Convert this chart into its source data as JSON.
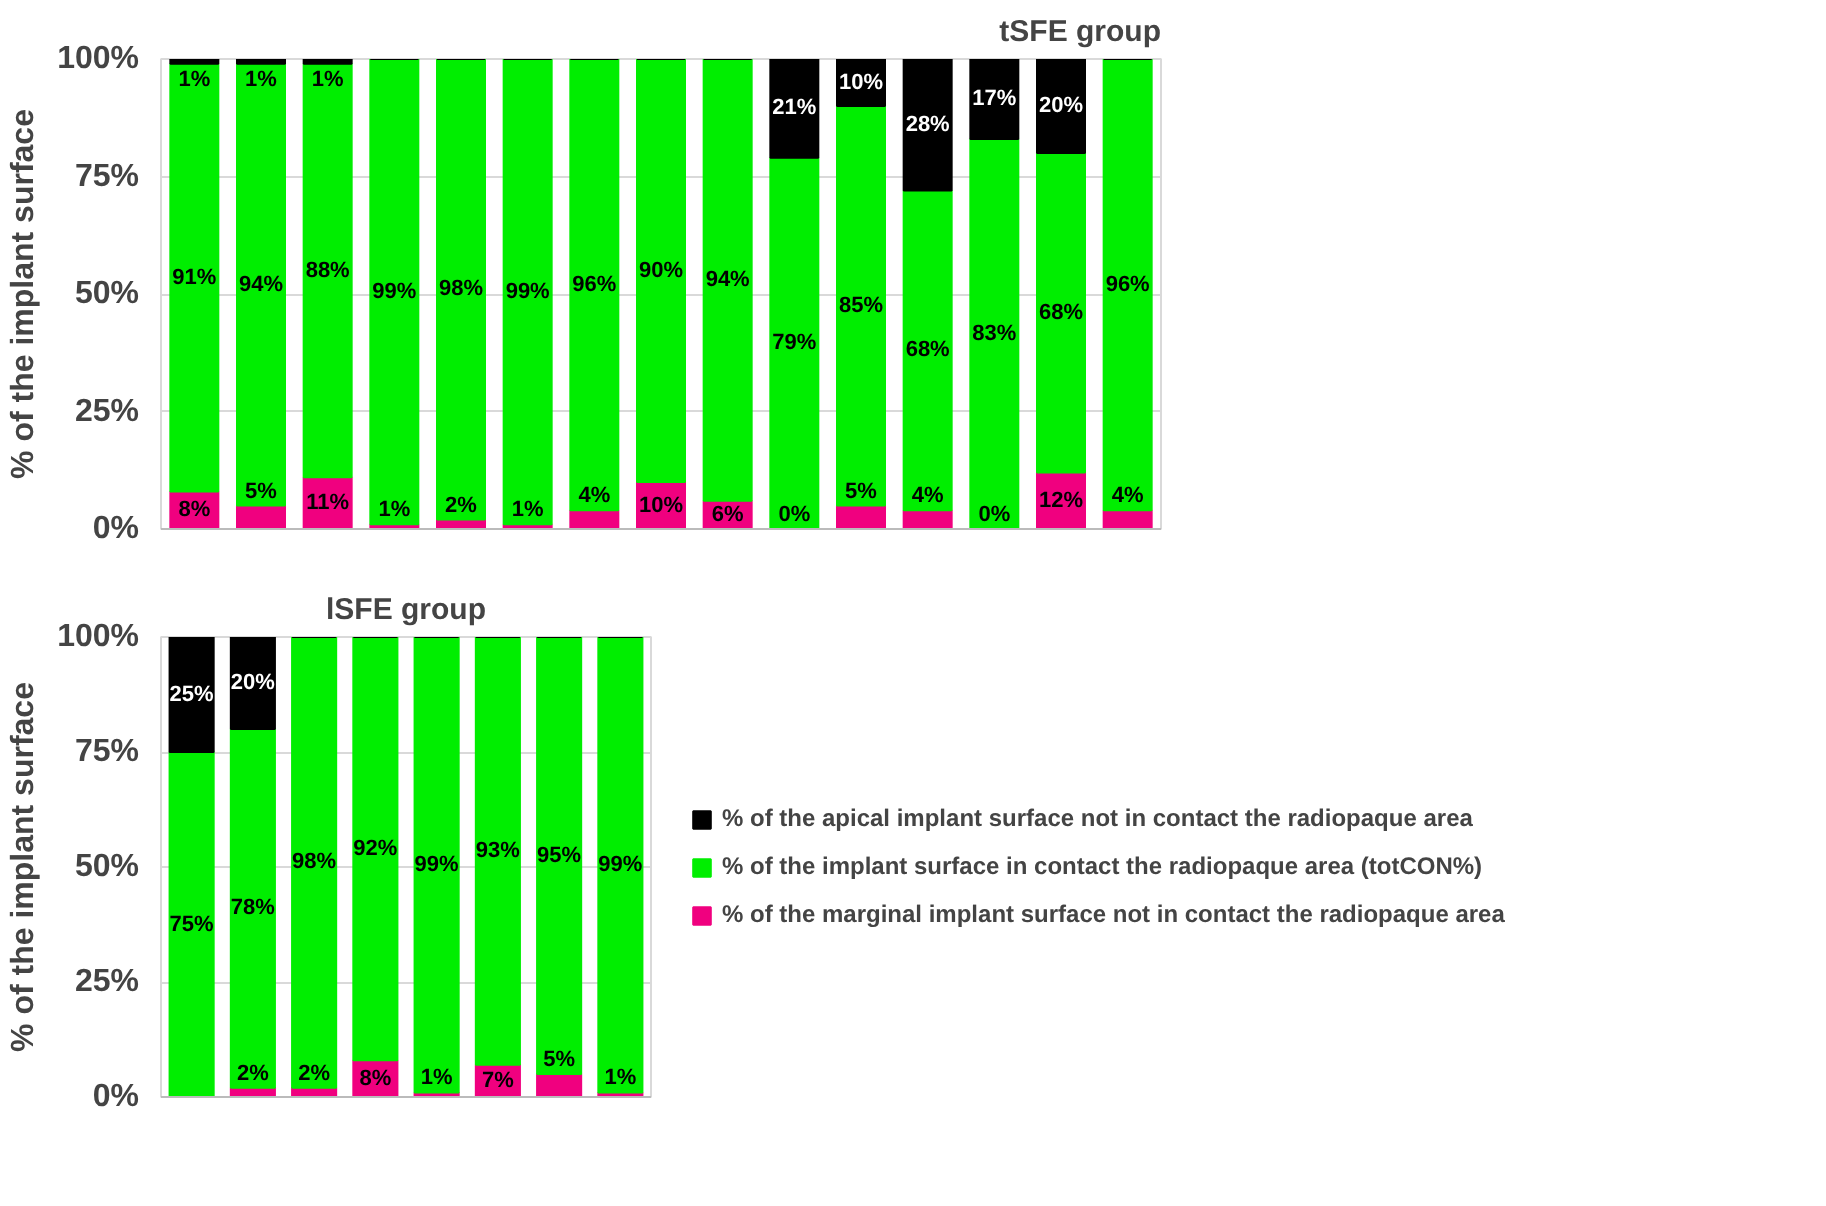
{
  "chart_data": [
    {
      "type": "bar",
      "title": "tSFE group",
      "ylabel": "% of the implant surface",
      "stacked": true,
      "categories": [
        null,
        null,
        null,
        null,
        null,
        null,
        null,
        null,
        null,
        null,
        null,
        null,
        null,
        null,
        null
      ],
      "ylim": [
        0,
        100
      ],
      "yticks": [
        {
          "value": 0,
          "label": "0%"
        },
        {
          "value": 25,
          "label": "25%"
        },
        {
          "value": 50,
          "label": "50%"
        },
        {
          "value": 75,
          "label": "75%"
        },
        {
          "value": 100,
          "label": "100%"
        }
      ],
      "grid": "y",
      "series": [
        {
          "color": "#f0007f",
          "values": [
            8,
            5,
            11,
            1,
            2,
            1,
            4,
            10,
            6,
            0,
            5,
            4,
            0,
            12,
            4
          ],
          "value_labels": [
            "8%",
            "5%",
            "11%",
            "1%",
            "2%",
            "1%",
            "4%",
            "10%",
            "6%",
            "0%",
            "5%",
            "4%",
            "0%",
            "12%",
            "4%"
          ]
        },
        {
          "color": "#00ee00",
          "values": [
            91,
            94,
            88,
            99,
            98,
            99,
            96,
            90,
            94,
            79,
            85,
            68,
            83,
            68,
            96
          ],
          "value_labels": [
            "91%",
            "94%",
            "88%",
            "99%",
            "98%",
            "99%",
            "96%",
            "90%",
            "94%",
            "79%",
            "85%",
            "68%",
            "83%",
            "68%",
            "96%"
          ]
        },
        {
          "color": "#000000",
          "values": [
            1,
            1,
            1,
            0,
            0,
            0,
            0,
            0,
            0,
            21,
            10,
            28,
            17,
            20,
            0
          ],
          "value_labels": [
            "1%",
            "1%",
            "1%",
            null,
            null,
            null,
            null,
            null,
            null,
            "21%",
            "10%",
            "28%",
            "17%",
            "20%",
            null
          ]
        }
      ]
    },
    {
      "type": "bar",
      "title": "lSFE group",
      "ylabel": "% of the implant surface",
      "stacked": true,
      "categories": [
        null,
        null,
        null,
        null,
        null,
        null,
        null,
        null
      ],
      "ylim": [
        0,
        100
      ],
      "yticks": [
        {
          "value": 0,
          "label": "0%"
        },
        {
          "value": 25,
          "label": "25%"
        },
        {
          "value": 50,
          "label": "50%"
        },
        {
          "value": 75,
          "label": "75%"
        },
        {
          "value": 100,
          "label": "100%"
        }
      ],
      "grid": "y",
      "legend": "right",
      "series": [
        {
          "name": "% of the marginal implant surface not in contact the radiopaque area",
          "color": "#f0007f",
          "values": [
            0,
            2,
            2,
            8,
            1,
            7,
            5,
            1
          ],
          "value_labels": [
            null,
            "2%",
            "2%",
            "8%",
            "1%",
            "7%",
            "5%",
            "1%"
          ]
        },
        {
          "name": "% of the implant surface in contact the radiopaque area (totCON%)",
          "color": "#00ee00",
          "values": [
            75,
            78,
            98,
            92,
            99,
            93,
            95,
            99
          ],
          "value_labels": [
            "75%",
            "78%",
            "98%",
            "92%",
            "99%",
            "93%",
            "95%",
            "99%"
          ]
        },
        {
          "name": "% of the apical implant surface not in contact the radiopaque area",
          "color": "#000000",
          "values": [
            25,
            20,
            0,
            0,
            0,
            0,
            0,
            0
          ],
          "value_labels": [
            "25%",
            "20%",
            null,
            null,
            null,
            null,
            null,
            null
          ]
        }
      ]
    }
  ]
}
